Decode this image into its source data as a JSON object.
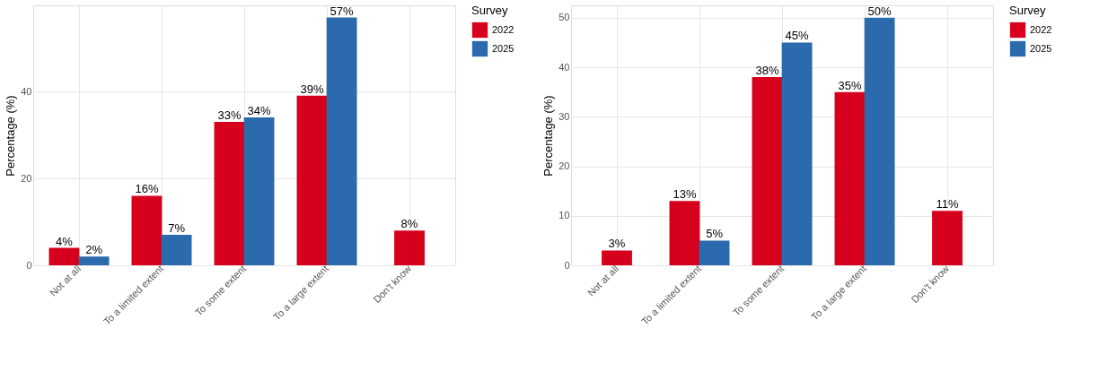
{
  "chart_data": [
    {
      "type": "bar",
      "ylabel": "Percentage (%)",
      "legend_title": "Survey",
      "legend": "right",
      "grid": true,
      "categories": [
        "Not at all",
        "To a limited extent",
        "To some extent",
        "To a large extent",
        "Don't know"
      ],
      "ylim": [
        0,
        59.8
      ],
      "yticks": [
        0,
        20,
        40
      ],
      "series": [
        {
          "name": "2022",
          "color": "#d7001c",
          "values": [
            4,
            16,
            33,
            39,
            8
          ],
          "value_labels": [
            "4%",
            "16%",
            "33%",
            "39%",
            "8%"
          ]
        },
        {
          "name": "2025",
          "color": "#2b6aad",
          "values": [
            2,
            7,
            34,
            57,
            null
          ],
          "value_labels": [
            "2%",
            "7%",
            "34%",
            "57%",
            null
          ]
        }
      ]
    },
    {
      "type": "bar",
      "ylabel": "Percentage (%)",
      "legend_title": "Survey",
      "legend": "right",
      "grid": true,
      "categories": [
        "Not at all",
        "To a limited extent",
        "To some extent",
        "To a large extent",
        "Don't know"
      ],
      "ylim": [
        0,
        52.5
      ],
      "yticks": [
        0,
        10,
        20,
        30,
        40,
        50
      ],
      "series": [
        {
          "name": "2022",
          "color": "#d7001c",
          "values": [
            3,
            13,
            38,
            35,
            11
          ],
          "value_labels": [
            "3%",
            "13%",
            "38%",
            "35%",
            "11%"
          ]
        },
        {
          "name": "2025",
          "color": "#2b6aad",
          "values": [
            null,
            5,
            45,
            50,
            null
          ],
          "value_labels": [
            null,
            "5%",
            "45%",
            "50%",
            null
          ]
        }
      ]
    }
  ]
}
